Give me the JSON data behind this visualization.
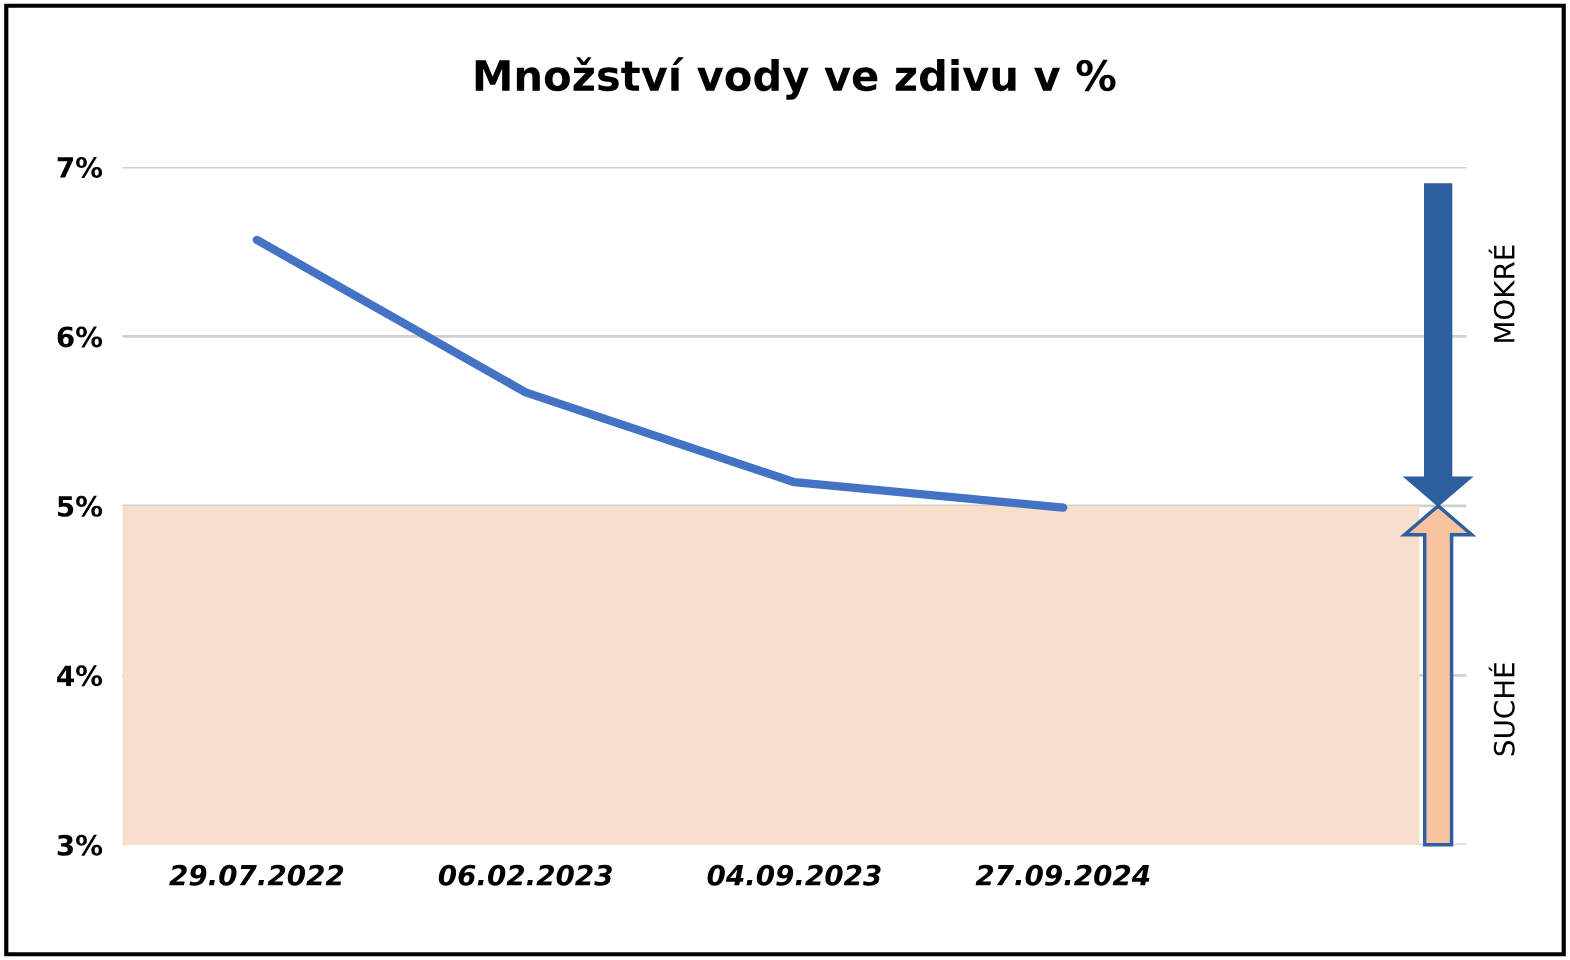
{
  "chart_data": {
    "type": "line",
    "title": "Množství vody ve zdivu v %",
    "categories": [
      "29.07.2022",
      "06.02.2023",
      "04.09.2023",
      "27.09.2024",
      null
    ],
    "series": [
      {
        "color": "#4472c4",
        "values": [
          6.57,
          5.67,
          5.14,
          4.99,
          null
        ]
      }
    ],
    "ylim": [
      3,
      7
    ],
    "yticks": [
      {
        "value": 3,
        "label": "3%"
      },
      {
        "value": 4,
        "label": "4%"
      },
      {
        "value": 5,
        "label": "5%"
      },
      {
        "value": 6,
        "label": "6%"
      },
      {
        "value": 7,
        "label": "7%"
      }
    ],
    "bands": [
      {
        "axis": "y",
        "from": 3,
        "to": 5,
        "color": "#f8dfcc"
      }
    ],
    "annotations": [
      "MOKRÉ",
      "SUCHÉ"
    ],
    "grid": "y",
    "legend": false,
    "marker": "none",
    "line_style": "solid"
  }
}
